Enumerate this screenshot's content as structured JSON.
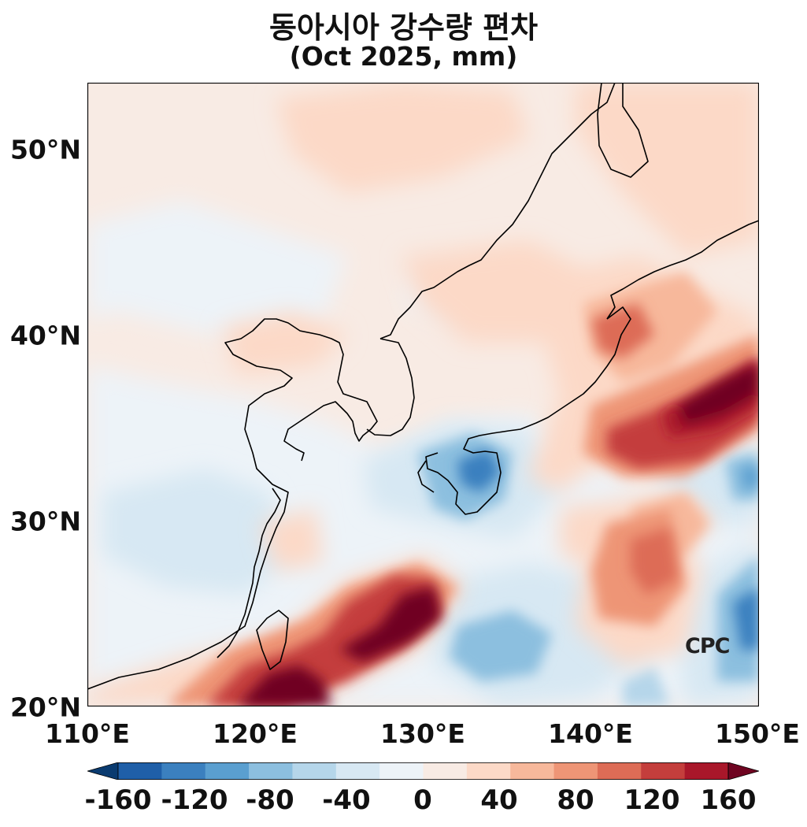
{
  "header": {
    "title": "동아시아 강수량 편차",
    "subtitle": "(Oct 2025, mm)"
  },
  "map": {
    "lon_range": [
      110,
      150
    ],
    "lat_range": [
      20,
      53.5
    ],
    "lat_ticks": [
      "50°N",
      "40°N",
      "30°N",
      "20°N"
    ],
    "lon_ticks": [
      "110°E",
      "120°E",
      "130°E",
      "140°E",
      "150°E"
    ],
    "logo": "CPC"
  },
  "colorbar": {
    "ticks": [
      "-160",
      "-120",
      "-80",
      "-40",
      "0",
      "40",
      "80",
      "120",
      "160"
    ],
    "colors": [
      "#0a3b70",
      "#1f5fa8",
      "#3b80bf",
      "#5a9fd0",
      "#8cbfdf",
      "#b5d6ea",
      "#d7e8f3",
      "#edf3f8",
      "#f8ebe4",
      "#fcd9c7",
      "#f7b89b",
      "#ee9576",
      "#dd6c56",
      "#c43e3c",
      "#a9172a",
      "#6f0421"
    ]
  }
}
